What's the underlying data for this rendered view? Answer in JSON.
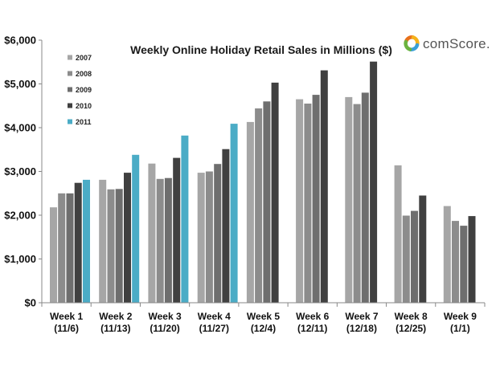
{
  "chart_data": {
    "type": "bar",
    "title": "Weekly Online Holiday Retail Sales in Millions ($)",
    "brand": "comScore.",
    "categories": [
      [
        "Week 1",
        "(11/6)"
      ],
      [
        "Week 2",
        "(11/13)"
      ],
      [
        "Week 3",
        "(11/20)"
      ],
      [
        "Week 4",
        "(11/27)"
      ],
      [
        "Week 5",
        "(12/4)"
      ],
      [
        "Week 6",
        "(12/11)"
      ],
      [
        "Week 7",
        "(12/18)"
      ],
      [
        "Week 8",
        "(12/25)"
      ],
      [
        "Week 9",
        "(1/1)"
      ]
    ],
    "series": [
      {
        "name": "2007",
        "color": "#a6a6a6",
        "values": [
          2180,
          2810,
          3180,
          2970,
          4130,
          4650,
          4700,
          3140,
          2210
        ]
      },
      {
        "name": "2008",
        "color": "#8c8c8c",
        "values": [
          2500,
          2590,
          2830,
          3000,
          4440,
          4550,
          4540,
          1990,
          1870
        ]
      },
      {
        "name": "2009",
        "color": "#6e6e6e",
        "values": [
          2500,
          2600,
          2850,
          3170,
          4600,
          4750,
          4800,
          2100,
          1760
        ]
      },
      {
        "name": "2010",
        "color": "#404040",
        "values": [
          2740,
          2970,
          3310,
          3510,
          5030,
          5310,
          5510,
          2450,
          1980
        ]
      },
      {
        "name": "2011",
        "color": "#4bacc6",
        "values": [
          2810,
          3380,
          3820,
          4090,
          null,
          null,
          null,
          null,
          null
        ]
      }
    ],
    "yticks": [
      "$0",
      "$1,000",
      "$2,000",
      "$3,000",
      "$4,000",
      "$5,000",
      "$6,000"
    ],
    "ylim": [
      0,
      6000
    ],
    "grid": false,
    "legend": "top-left"
  }
}
